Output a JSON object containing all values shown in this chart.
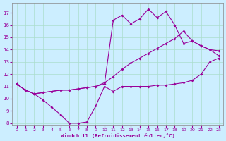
{
  "xlabel": "Windchill (Refroidissement éolien,°C)",
  "bg_color": "#cceeff",
  "grid_color": "#aaddcc",
  "line_color": "#990099",
  "xlim": [
    -0.5,
    23.5
  ],
  "ylim": [
    7.8,
    17.8
  ],
  "yticks": [
    8,
    9,
    10,
    11,
    12,
    13,
    14,
    15,
    16,
    17
  ],
  "xticks": [
    0,
    1,
    2,
    3,
    4,
    5,
    6,
    7,
    8,
    9,
    10,
    11,
    12,
    13,
    14,
    15,
    16,
    17,
    18,
    19,
    20,
    21,
    22,
    23
  ],
  "curve1_x": [
    0,
    1,
    2,
    3,
    4,
    5,
    6,
    7,
    8,
    9,
    10,
    11,
    12,
    13,
    14,
    15,
    16,
    17,
    18,
    19,
    20,
    21,
    22,
    23
  ],
  "curve1_y": [
    11.2,
    10.7,
    10.4,
    9.9,
    9.3,
    8.7,
    8.0,
    8.0,
    8.1,
    9.4,
    11.0,
    10.6,
    11.0,
    11.0,
    11.0,
    11.0,
    11.1,
    11.1,
    11.2,
    11.3,
    11.5,
    12.0,
    13.0,
    13.3
  ],
  "curve2_x": [
    0,
    1,
    2,
    3,
    4,
    5,
    6,
    7,
    8,
    9,
    10,
    11,
    12,
    13,
    14,
    15,
    16,
    17,
    18,
    19,
    20,
    21,
    22,
    23
  ],
  "curve2_y": [
    11.2,
    10.7,
    10.4,
    10.5,
    10.6,
    10.7,
    10.7,
    10.8,
    10.9,
    11.0,
    11.3,
    11.8,
    12.4,
    12.9,
    13.3,
    13.7,
    14.1,
    14.5,
    14.9,
    15.5,
    14.7,
    14.3,
    14.0,
    13.9
  ],
  "curve3_x": [
    0,
    1,
    2,
    3,
    4,
    5,
    6,
    7,
    8,
    9,
    10,
    11,
    12,
    13,
    14,
    15,
    16,
    17,
    18,
    19,
    20,
    21,
    22,
    23
  ],
  "curve3_y": [
    11.2,
    10.7,
    10.4,
    10.5,
    10.6,
    10.7,
    10.7,
    10.8,
    10.9,
    11.0,
    11.2,
    16.4,
    16.8,
    16.1,
    16.5,
    17.3,
    16.6,
    17.1,
    16.0,
    14.5,
    14.7,
    14.3,
    14.0,
    13.5
  ]
}
